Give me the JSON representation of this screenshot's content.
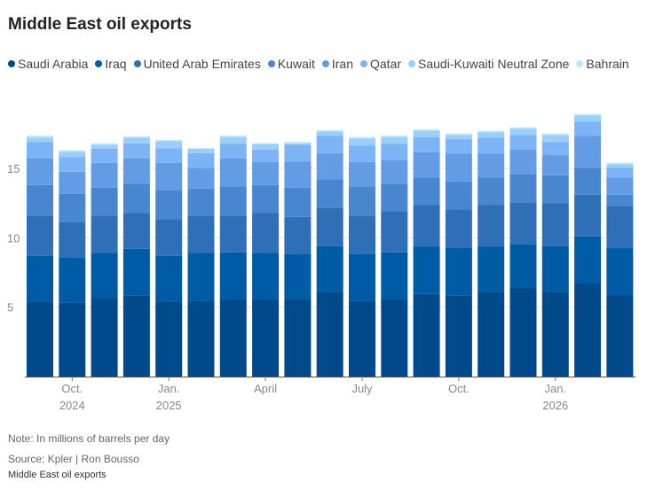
{
  "title": "Middle East oil exports",
  "footer": {
    "note": "Note: In millions of barrels per day",
    "source": "Source: Kpler | Ron Bousso",
    "caption": "Middle East oil exports"
  },
  "chart_data": {
    "type": "bar",
    "stacked": true,
    "title": "Middle East oil exports",
    "ylabel": "Millions of barrels per day",
    "ylim": [
      0,
      19.5
    ],
    "yticks": [
      "5",
      "10",
      "15"
    ],
    "ytick_values": [
      5,
      10,
      15
    ],
    "grid": true,
    "legend": "top",
    "categories": [
      "Sep 2024",
      "Oct 2024",
      "Nov 2024",
      "Dec 2024",
      "Jan 2025",
      "Feb 2025",
      "Mar 2025",
      "Apr 2025",
      "May 2025",
      "Jun 2025",
      "Jul 2025",
      "Aug 2025",
      "Sep 2025",
      "Oct 2025",
      "Nov 2025",
      "Dec 2025",
      "Jan 2026",
      "Feb 2026",
      "Mar 2026"
    ],
    "xticks": [
      {
        "index": 1,
        "label": "Oct.",
        "year": "2024"
      },
      {
        "index": 4,
        "label": "Jan.",
        "year": "2025"
      },
      {
        "index": 7,
        "label": "April",
        "year": ""
      },
      {
        "index": 10,
        "label": "July",
        "year": ""
      },
      {
        "index": 13,
        "label": "Oct.",
        "year": ""
      },
      {
        "index": 16,
        "label": "Jan.",
        "year": "2026"
      }
    ],
    "series": [
      {
        "name": "Saudi Arabia",
        "color": "#004a8c",
        "values": [
          5.4,
          5.35,
          5.65,
          5.85,
          5.4,
          5.45,
          5.55,
          5.55,
          5.55,
          6.1,
          5.45,
          5.55,
          5.95,
          5.85,
          6.1,
          6.35,
          6.1,
          6.7,
          5.9
        ]
      },
      {
        "name": "Iraq",
        "color": "#005ba6",
        "values": [
          3.3,
          3.2,
          3.25,
          3.35,
          3.3,
          3.45,
          3.4,
          3.35,
          3.3,
          3.3,
          3.4,
          3.4,
          3.4,
          3.45,
          3.25,
          3.2,
          3.3,
          3.4,
          3.35
        ]
      },
      {
        "name": "United Arab Emirates",
        "color": "#2e6fb8",
        "values": [
          2.9,
          2.6,
          2.65,
          2.6,
          2.65,
          2.7,
          2.65,
          2.9,
          2.65,
          2.75,
          2.75,
          2.95,
          3.0,
          2.75,
          3.0,
          3.0,
          3.1,
          3.0,
          3.05
        ]
      },
      {
        "name": "Kuwait",
        "color": "#4986d0",
        "values": [
          2.2,
          2.0,
          2.05,
          2.1,
          2.05,
          1.95,
          2.1,
          2.0,
          2.1,
          2.05,
          2.1,
          1.95,
          2.0,
          2.0,
          2.0,
          2.05,
          2.0,
          1.95,
          0.8
        ]
      },
      {
        "name": "Iran",
        "color": "#639ce4",
        "values": [
          1.9,
          1.6,
          1.8,
          1.8,
          2.0,
          1.5,
          2.0,
          1.65,
          1.9,
          1.9,
          1.75,
          1.75,
          1.8,
          2.0,
          1.7,
          1.75,
          1.45,
          2.3,
          1.25
        ]
      },
      {
        "name": "Qatar",
        "color": "#7cb4f6",
        "values": [
          1.2,
          1.05,
          1.0,
          1.1,
          1.05,
          1.05,
          1.05,
          0.9,
          1.2,
          1.25,
          1.2,
          1.15,
          1.1,
          1.05,
          1.15,
          1.05,
          0.95,
          1.0,
          0.7
        ]
      },
      {
        "name": "Saudi-Kuwaiti Neutral Zone",
        "color": "#9dcdf9",
        "values": [
          0.3,
          0.4,
          0.3,
          0.4,
          0.5,
          0.3,
          0.5,
          0.4,
          0.1,
          0.3,
          0.5,
          0.5,
          0.45,
          0.3,
          0.4,
          0.45,
          0.5,
          0.45,
          0.25
        ]
      },
      {
        "name": "Bahrain",
        "color": "#bde6fb",
        "values": [
          0.15,
          0.1,
          0.1,
          0.1,
          0.1,
          0.05,
          0.1,
          0.05,
          0.1,
          0.1,
          0.1,
          0.1,
          0.1,
          0.1,
          0.1,
          0.1,
          0.1,
          0.1,
          0.1
        ]
      }
    ]
  }
}
